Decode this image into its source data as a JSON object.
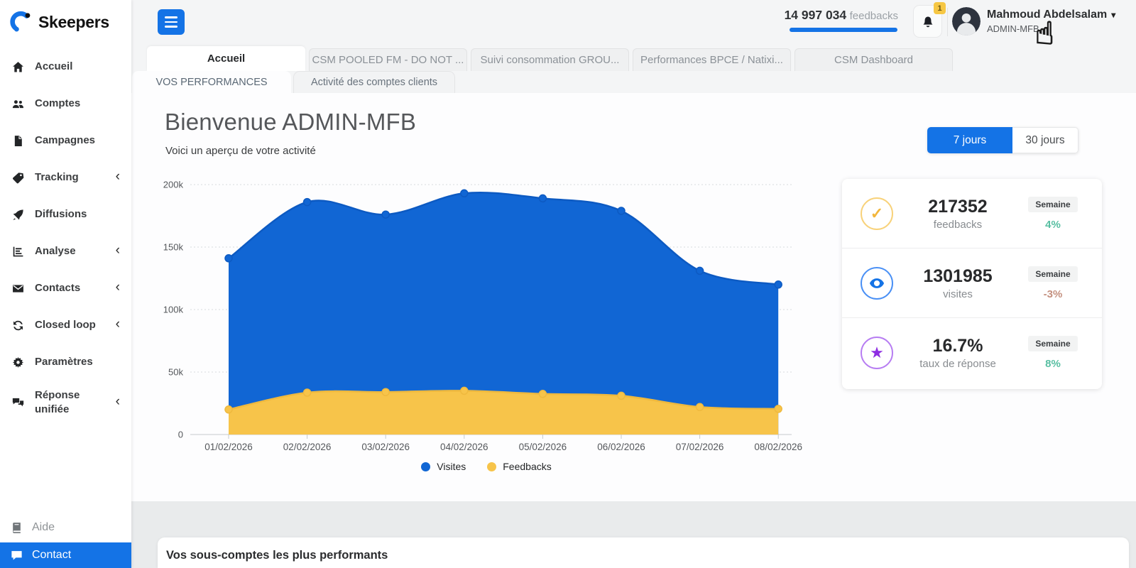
{
  "sidebar": {
    "logo_text": "Skeepers",
    "items": [
      {
        "label": "Accueil",
        "icon": "home-icon",
        "chevron": false
      },
      {
        "label": "Comptes",
        "icon": "users-icon",
        "chevron": false
      },
      {
        "label": "Campagnes",
        "icon": "document-icon",
        "chevron": false
      },
      {
        "label": "Tracking",
        "icon": "tag-icon",
        "chevron": true
      },
      {
        "label": "Diffusions",
        "icon": "rocket-icon",
        "chevron": false
      },
      {
        "label": "Analyse",
        "icon": "chart-icon",
        "chevron": true
      },
      {
        "label": "Contacts",
        "icon": "mail-icon",
        "chevron": true
      },
      {
        "label": "Closed loop",
        "icon": "sync-icon",
        "chevron": true
      },
      {
        "label": "Paramètres",
        "icon": "gear-icon",
        "chevron": false
      },
      {
        "label": "Réponse unifiée",
        "icon": "chat-duo-icon",
        "chevron": true,
        "tall": true
      }
    ],
    "footer_items": [
      {
        "label": "Aide",
        "icon": "book-icon",
        "active": false
      },
      {
        "label": "Contact",
        "icon": "chat-bubble-icon",
        "active": true
      }
    ]
  },
  "topbar": {
    "feedback_count": "14 997 034",
    "feedback_label": "feedbacks",
    "notification_badge": "1",
    "user_name": "Mahmoud Abdelsalam",
    "user_role": "ADMIN-MFB",
    "caret": "▾",
    "cursor_glyph": "☝"
  },
  "tabs": [
    {
      "label": "Accueil",
      "active": true
    },
    {
      "label": "CSM POOLED FM - DO NOT ...",
      "active": false
    },
    {
      "label": "Suivi consommation GROU...",
      "active": false
    },
    {
      "label": "Performances BPCE / Natixi...",
      "active": false
    },
    {
      "label": "CSM Dashboard",
      "active": false
    }
  ],
  "subtabs": [
    {
      "label": "VOS PERFORMANCES",
      "active": true
    },
    {
      "label": "Activité des comptes clients",
      "active": false
    }
  ],
  "main": {
    "title": "Bienvenue ADMIN-MFB",
    "subtitle": "Voici un aperçu de votre activité",
    "period_buttons": [
      {
        "label": "7 jours",
        "active": true
      },
      {
        "label": "30 jours",
        "active": false
      }
    ],
    "stats": [
      {
        "value": "217352",
        "label": "feedbacks",
        "badge": "Semaine",
        "delta": "4%",
        "delta_color": "#58bfa2",
        "icon": "check-circle-icon",
        "ring": "#f8d27a",
        "glyph_color": "#f2b63c"
      },
      {
        "value": "1301985",
        "label": "visites",
        "badge": "Semaine",
        "delta": "-3%",
        "delta_color": "#c4907f",
        "icon": "eye-icon",
        "ring": "#4a90f5",
        "glyph_color": "#1473e6"
      },
      {
        "value": "16.7%",
        "label": "taux de réponse",
        "badge": "Semaine",
        "delta": "8%",
        "delta_color": "#58bfa2",
        "icon": "star-icon",
        "ring": "#b77df2",
        "glyph_color": "#8e2de2"
      }
    ],
    "bottom_section_title": "Vos sous-comptes les plus performants"
  },
  "chart_data": {
    "type": "area",
    "title": "",
    "xlabel": "",
    "ylabel": "",
    "x": [
      "01/02/2026",
      "02/02/2026",
      "03/02/2026",
      "04/02/2026",
      "05/02/2026",
      "06/02/2026",
      "07/02/2026",
      "08/02/2026"
    ],
    "series": [
      {
        "name": "Visites",
        "color": "#1166d4",
        "line": "#0d5ac2",
        "values": [
          141000,
          186000,
          176000,
          193000,
          189000,
          179000,
          131000,
          120000
        ]
      },
      {
        "name": "Feedbacks",
        "color": "#f7c44a",
        "line": "#efb93e",
        "values": [
          20000,
          33500,
          34000,
          35000,
          32500,
          31000,
          22000,
          20500
        ]
      }
    ],
    "ylim": [
      0,
      200000
    ],
    "ytick_values": [
      0,
      50000,
      100000,
      150000,
      200000
    ],
    "ytick_labels": [
      "0",
      "50k",
      "100k",
      "150k",
      "200k"
    ],
    "grid": true,
    "legend_position": "bottom"
  },
  "colors": {
    "primary_blue": "#1473e6",
    "chart_blue": "#1166d4",
    "chart_yellow": "#f7c44a",
    "badge_yellow": "#f6c744",
    "positive_delta": "#58bfa2",
    "negative_delta": "#c4907f"
  }
}
